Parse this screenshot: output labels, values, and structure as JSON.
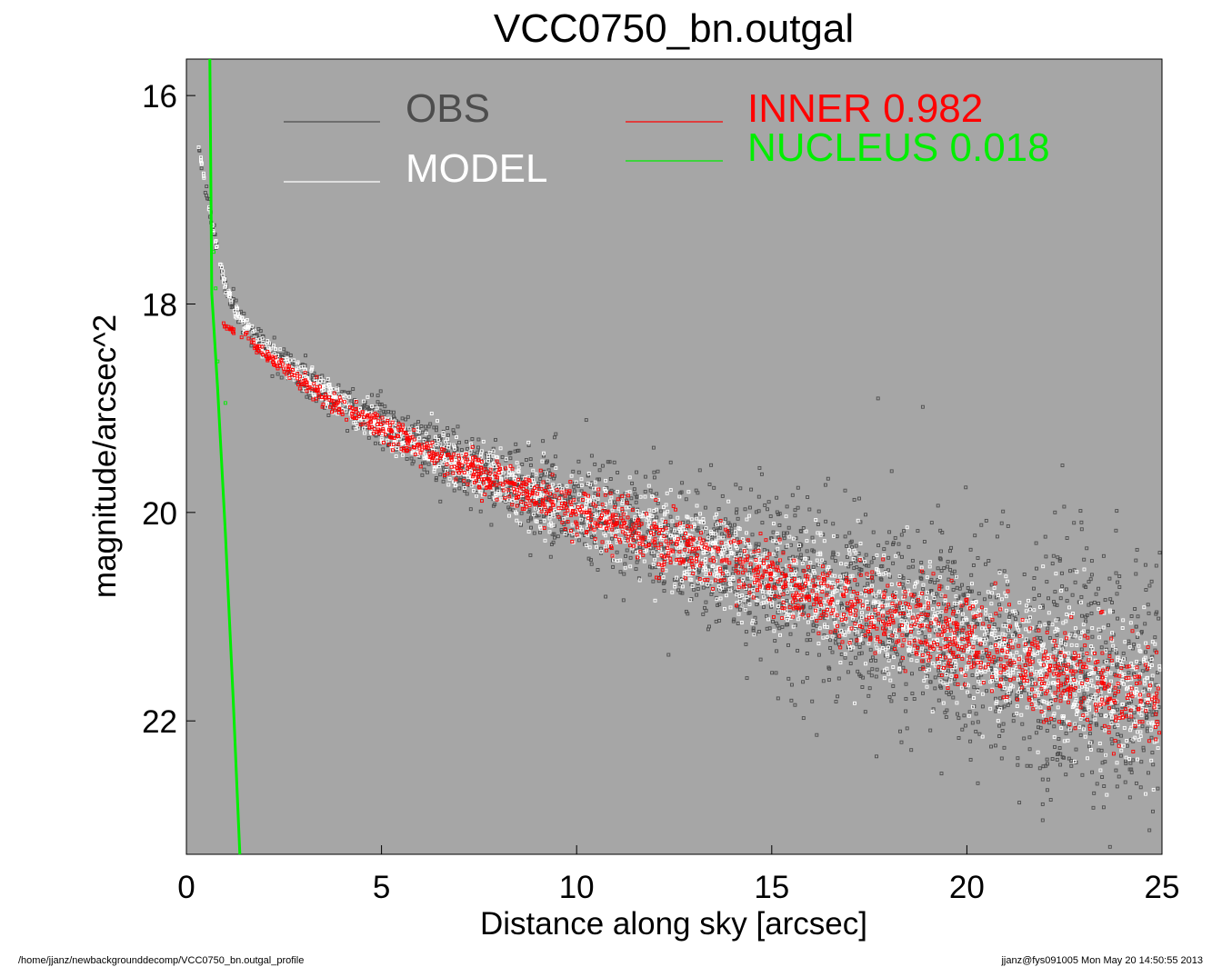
{
  "footer": {
    "left": "/home/jjanz/newbackgrounddecomp/VCC0750_bn.outgal_profile",
    "right": "jjanz@fys091005  Mon May 20 14:50:55 2013"
  },
  "chart_data": {
    "type": "scatter",
    "title": "VCC0750_bn.outgal",
    "xlabel": "Distance along sky [arcsec]",
    "ylabel": "magnitude/arcsec^2",
    "xlim": [
      0,
      25
    ],
    "ylim": [
      23.28,
      15.65
    ],
    "y_inverted": true,
    "x_ticks": [
      0,
      5,
      10,
      15,
      20,
      25
    ],
    "y_ticks": [
      16,
      18,
      20,
      22
    ],
    "background_color": "#a6a6a6",
    "grid": false,
    "legend": [
      {
        "name": "OBS",
        "color": "#4d4d4d",
        "column": "left"
      },
      {
        "name": "MODEL",
        "color": "#ffffff",
        "column": "left"
      },
      {
        "name": "INNER",
        "value": "0.982",
        "color": "#ff0000",
        "column": "right"
      },
      {
        "name": "NUCLEUS",
        "value": "0.018",
        "color": "#00ee00",
        "column": "right"
      }
    ],
    "series": [
      {
        "name": "OBS",
        "kind": "scatter",
        "color": "#4d4d4d",
        "center_x": [
          0.3,
          0.5,
          0.8,
          1.0,
          1.5,
          2,
          3,
          4,
          5,
          6,
          7,
          8,
          9,
          10,
          11,
          12,
          13,
          14,
          15,
          16,
          17,
          18,
          19,
          20,
          21,
          22,
          23,
          24,
          25
        ],
        "center_y": [
          16.45,
          16.9,
          17.5,
          17.85,
          18.2,
          18.42,
          18.7,
          18.95,
          19.17,
          19.36,
          19.53,
          19.68,
          19.83,
          19.97,
          20.11,
          20.24,
          20.37,
          20.5,
          20.62,
          20.75,
          20.87,
          20.99,
          21.11,
          21.23,
          21.35,
          21.46,
          21.58,
          21.7,
          21.82
        ],
        "spread": [
          0.05,
          0.08,
          0.1,
          0.1,
          0.1,
          0.12,
          0.15,
          0.18,
          0.22,
          0.26,
          0.3,
          0.35,
          0.4,
          0.45,
          0.5,
          0.55,
          0.62,
          0.7,
          0.78,
          0.85,
          0.92,
          1.0,
          1.05,
          1.1,
          1.15,
          1.2,
          1.25,
          1.3,
          1.35
        ]
      },
      {
        "name": "MODEL",
        "kind": "scatter",
        "color": "#ffffff",
        "center_x": [
          0.3,
          0.5,
          0.8,
          1.0,
          1.5,
          2,
          3,
          4,
          5,
          6,
          7,
          8,
          9,
          10,
          11,
          12,
          13,
          14,
          15,
          16,
          17,
          18,
          19,
          20,
          21,
          22,
          23,
          24,
          25
        ],
        "center_y": [
          16.45,
          16.9,
          17.5,
          17.85,
          18.2,
          18.42,
          18.7,
          18.95,
          19.17,
          19.36,
          19.53,
          19.68,
          19.83,
          19.97,
          20.11,
          20.24,
          20.37,
          20.5,
          20.62,
          20.75,
          20.87,
          20.99,
          21.11,
          21.23,
          21.35,
          21.46,
          21.58,
          21.7,
          21.82
        ],
        "spread": [
          0.04,
          0.05,
          0.06,
          0.07,
          0.08,
          0.1,
          0.12,
          0.14,
          0.17,
          0.2,
          0.23,
          0.26,
          0.3,
          0.33,
          0.36,
          0.39,
          0.42,
          0.45,
          0.48,
          0.5,
          0.52,
          0.54,
          0.56,
          0.58,
          0.6,
          0.62,
          0.64,
          0.66,
          0.68
        ]
      },
      {
        "name": "INNER",
        "kind": "scatter",
        "color": "#ff0000",
        "center_x": [
          0.9,
          1.5,
          2,
          3,
          4,
          5,
          6,
          7,
          8,
          9,
          10,
          11,
          12,
          13,
          14,
          15,
          16,
          17,
          18,
          19,
          20,
          21,
          22,
          23,
          24,
          25
        ],
        "center_y": [
          18.2,
          18.3,
          18.48,
          18.75,
          19.0,
          19.2,
          19.38,
          19.55,
          19.7,
          19.85,
          19.99,
          20.13,
          20.26,
          20.39,
          20.52,
          20.65,
          20.78,
          20.9,
          21.02,
          21.14,
          21.26,
          21.38,
          21.5,
          21.62,
          21.74,
          21.85
        ],
        "spread": [
          0.03,
          0.05,
          0.06,
          0.08,
          0.1,
          0.12,
          0.14,
          0.16,
          0.18,
          0.2,
          0.22,
          0.24,
          0.26,
          0.28,
          0.3,
          0.32,
          0.34,
          0.36,
          0.38,
          0.4,
          0.42,
          0.44,
          0.46,
          0.48,
          0.5,
          0.52
        ]
      },
      {
        "name": "NUCLEUS",
        "kind": "line",
        "color": "#00ee00",
        "x": [
          0.6,
          0.62,
          0.65,
          0.8,
          1.0,
          1.2,
          1.37
        ],
        "y": [
          15.65,
          16.5,
          17.9,
          18.8,
          20.2,
          21.8,
          23.28
        ]
      },
      {
        "name": "NUCLEUS",
        "kind": "scatter",
        "color": "#00ee00",
        "x": [
          0.7,
          0.75,
          0.8,
          1.0
        ],
        "y": [
          17.5,
          17.85,
          18.55,
          18.95
        ]
      }
    ]
  }
}
